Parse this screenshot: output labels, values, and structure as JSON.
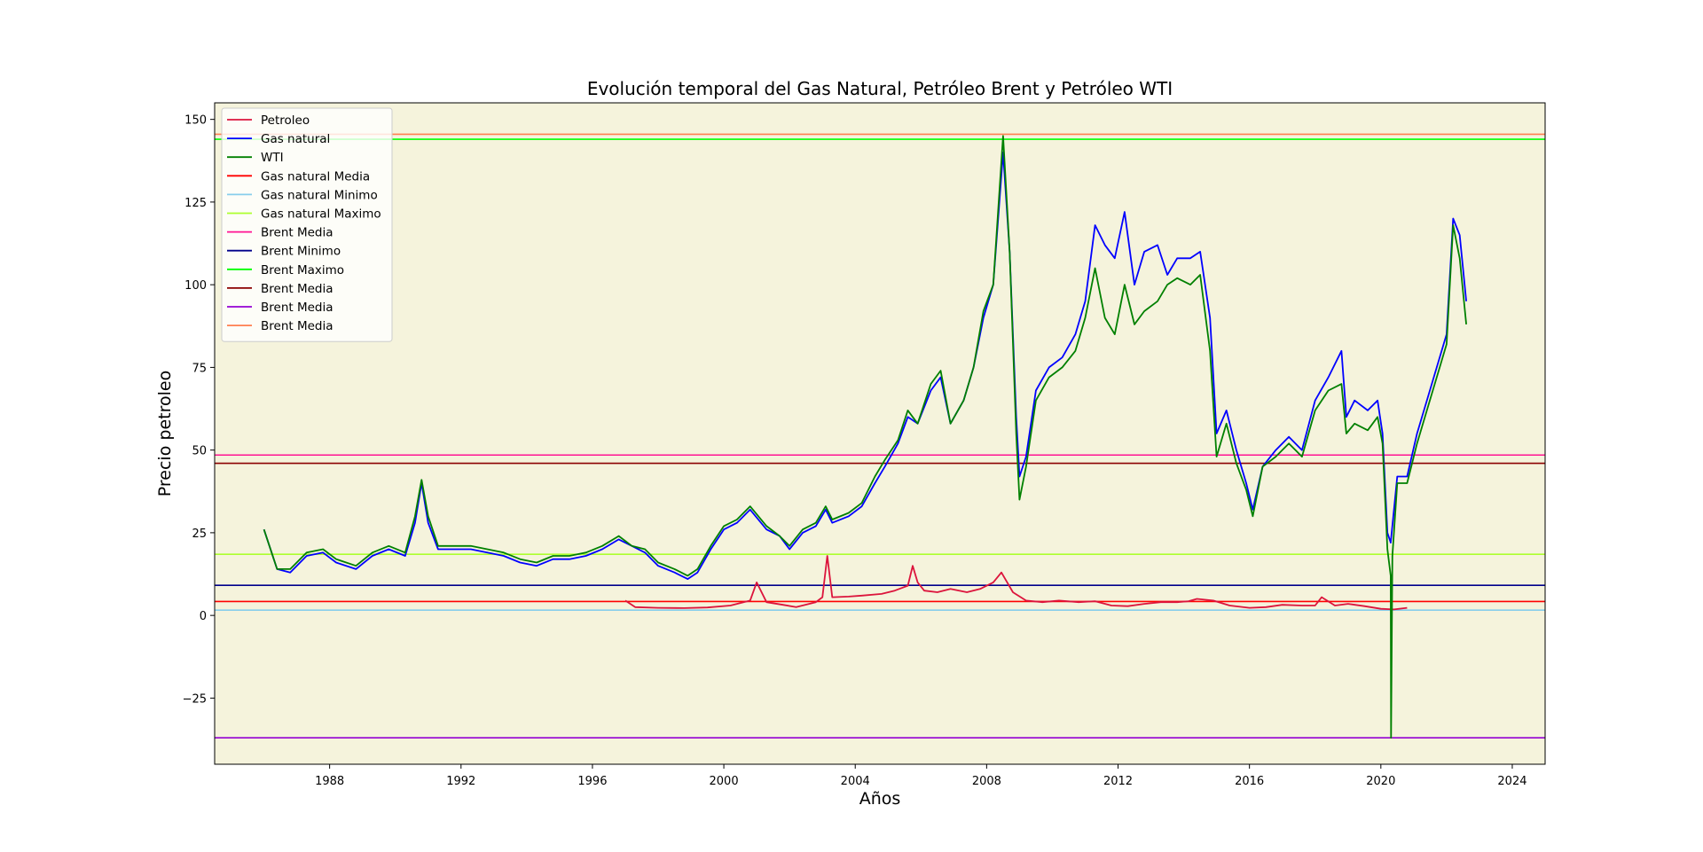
{
  "chart_data": {
    "type": "line",
    "title": "Evolución temporal del Gas Natural, Petróleo Brent y Petróleo WTI",
    "xlabel": "Años",
    "ylabel": "Precio petroleo",
    "xlim": [
      1984.5,
      2025.0
    ],
    "ylim": [
      -45,
      155
    ],
    "x_ticks": [
      1988,
      1992,
      1996,
      2000,
      2004,
      2008,
      2012,
      2016,
      2020,
      2024
    ],
    "y_ticks": [
      -25,
      0,
      25,
      50,
      75,
      100,
      125,
      150
    ],
    "grid": false,
    "plot_background": "#f5f3dc",
    "legend_position": "upper-left",
    "series": [
      {
        "name": "Petroleo",
        "color": "#dc143c",
        "x": [
          1997.0,
          1997.3,
          1998.0,
          1998.8,
          1999.5,
          2000.2,
          2000.8,
          2001.0,
          2001.3,
          2001.8,
          2002.2,
          2002.8,
          2003.0,
          2003.15,
          2003.3,
          2003.8,
          2004.2,
          2004.8,
          2005.2,
          2005.6,
          2005.75,
          2005.9,
          2006.1,
          2006.5,
          2006.9,
          2007.4,
          2007.8,
          2008.2,
          2008.45,
          2008.8,
          2009.2,
          2009.7,
          2010.2,
          2010.8,
          2011.3,
          2011.8,
          2012.3,
          2012.8,
          2013.3,
          2013.8,
          2014.15,
          2014.4,
          2014.9,
          2015.4,
          2016.0,
          2016.5,
          2017.0,
          2017.6,
          2018.0,
          2018.2,
          2018.6,
          2019.0,
          2019.5,
          2020.0,
          2020.4,
          2020.8
        ],
        "values": [
          4.5,
          2.5,
          2.3,
          2.2,
          2.4,
          3.0,
          4.5,
          10.0,
          4.0,
          3.2,
          2.5,
          4.0,
          5.5,
          18.0,
          5.5,
          5.7,
          6.0,
          6.5,
          7.5,
          9.0,
          15.0,
          10.0,
          7.5,
          7.0,
          8.0,
          7.0,
          8.0,
          10.0,
          13.0,
          7.0,
          4.5,
          4.0,
          4.5,
          4.0,
          4.3,
          3.0,
          2.8,
          3.5,
          4.0,
          4.0,
          4.3,
          5.0,
          4.5,
          3.0,
          2.3,
          2.5,
          3.2,
          3.0,
          3.0,
          5.5,
          3.0,
          3.5,
          2.8,
          2.0,
          1.8,
          2.3
        ]
      },
      {
        "name": "Gas natural",
        "color": "#0000ff",
        "x": [
          1986.0,
          1986.4,
          1986.8,
          1987.3,
          1987.8,
          1988.2,
          1988.8,
          1989.3,
          1989.8,
          1990.3,
          1990.6,
          1990.8,
          1991.0,
          1991.3,
          1991.8,
          1992.3,
          1992.8,
          1993.3,
          1993.8,
          1994.3,
          1994.8,
          1995.3,
          1995.8,
          1996.3,
          1996.8,
          1997.2,
          1997.6,
          1998.0,
          1998.5,
          1998.9,
          1999.2,
          1999.6,
          2000.0,
          2000.4,
          2000.8,
          2001.3,
          2001.7,
          2002.0,
          2002.4,
          2002.8,
          2003.1,
          2003.3,
          2003.8,
          2004.2,
          2004.6,
          2004.9,
          2005.3,
          2005.6,
          2005.9,
          2006.3,
          2006.6,
          2006.9,
          2007.3,
          2007.6,
          2007.9,
          2008.2,
          2008.5,
          2008.7,
          2008.9,
          2009.0,
          2009.2,
          2009.5,
          2009.9,
          2010.3,
          2010.7,
          2011.0,
          2011.3,
          2011.6,
          2011.9,
          2012.2,
          2012.5,
          2012.8,
          2013.2,
          2013.5,
          2013.8,
          2014.2,
          2014.5,
          2014.8,
          2015.0,
          2015.3,
          2015.6,
          2015.9,
          2016.1,
          2016.4,
          2016.8,
          2017.2,
          2017.6,
          2018.0,
          2018.4,
          2018.8,
          2018.95,
          2019.2,
          2019.6,
          2019.9,
          2020.05,
          2020.2,
          2020.3,
          2020.5,
          2020.8,
          2021.1,
          2021.4,
          2021.7,
          2022.0,
          2022.2,
          2022.4,
          2022.6
        ],
        "values": [
          26.0,
          14.0,
          13.0,
          18.0,
          19.0,
          16.0,
          14.0,
          18.0,
          20.0,
          18.0,
          28.0,
          40.0,
          28.0,
          20.0,
          20.0,
          20.0,
          19.0,
          18.0,
          16.0,
          15.0,
          17.0,
          17.0,
          18.0,
          20.0,
          23.0,
          21.0,
          19.0,
          15.0,
          13.0,
          11.0,
          13.0,
          20.0,
          26.0,
          28.0,
          32.0,
          26.0,
          24.0,
          20.0,
          25.0,
          27.0,
          32.0,
          28.0,
          30.0,
          33.0,
          40.0,
          45.0,
          52.0,
          60.0,
          58.0,
          68.0,
          72.0,
          58.0,
          65.0,
          75.0,
          90.0,
          100.0,
          140.0,
          110.0,
          60.0,
          42.0,
          48.0,
          68.0,
          75.0,
          78.0,
          85.0,
          95.0,
          118.0,
          112.0,
          108.0,
          122.0,
          100.0,
          110.0,
          112.0,
          103.0,
          108.0,
          108.0,
          110.0,
          90.0,
          55.0,
          62.0,
          50.0,
          40.0,
          32.0,
          45.0,
          50.0,
          54.0,
          50.0,
          65.0,
          72.0,
          80.0,
          60.0,
          65.0,
          62.0,
          65.0,
          55.0,
          25.0,
          22.0,
          42.0,
          42.0,
          55.0,
          65.0,
          75.0,
          85.0,
          120.0,
          115.0,
          95.0
        ]
      },
      {
        "name": "WTI",
        "color": "#008000",
        "x": [
          1986.0,
          1986.4,
          1986.8,
          1987.3,
          1987.8,
          1988.2,
          1988.8,
          1989.3,
          1989.8,
          1990.3,
          1990.6,
          1990.8,
          1991.0,
          1991.3,
          1991.8,
          1992.3,
          1992.8,
          1993.3,
          1993.8,
          1994.3,
          1994.8,
          1995.3,
          1995.8,
          1996.3,
          1996.8,
          1997.2,
          1997.6,
          1998.0,
          1998.5,
          1998.9,
          1999.2,
          1999.6,
          2000.0,
          2000.4,
          2000.8,
          2001.3,
          2001.7,
          2002.0,
          2002.4,
          2002.8,
          2003.1,
          2003.3,
          2003.8,
          2004.2,
          2004.6,
          2004.9,
          2005.3,
          2005.6,
          2005.9,
          2006.3,
          2006.6,
          2006.9,
          2007.3,
          2007.6,
          2007.9,
          2008.2,
          2008.5,
          2008.7,
          2008.9,
          2009.0,
          2009.2,
          2009.5,
          2009.9,
          2010.3,
          2010.7,
          2011.0,
          2011.3,
          2011.6,
          2011.9,
          2012.2,
          2012.5,
          2012.8,
          2013.2,
          2013.5,
          2013.8,
          2014.2,
          2014.5,
          2014.8,
          2015.0,
          2015.3,
          2015.6,
          2015.9,
          2016.1,
          2016.4,
          2016.8,
          2017.2,
          2017.6,
          2018.0,
          2018.4,
          2018.8,
          2018.95,
          2019.2,
          2019.6,
          2019.9,
          2020.05,
          2020.2,
          2020.3,
          2020.31,
          2020.35,
          2020.5,
          2020.8,
          2021.1,
          2021.4,
          2021.7,
          2022.0,
          2022.2,
          2022.4,
          2022.6
        ],
        "values": [
          26.0,
          14.0,
          14.0,
          19.0,
          20.0,
          17.0,
          15.0,
          19.0,
          21.0,
          19.0,
          30.0,
          41.0,
          30.0,
          21.0,
          21.0,
          21.0,
          20.0,
          19.0,
          17.0,
          16.0,
          18.0,
          18.0,
          19.0,
          21.0,
          24.0,
          21.0,
          20.0,
          16.0,
          14.0,
          12.0,
          14.0,
          21.0,
          27.0,
          29.0,
          33.0,
          27.0,
          24.0,
          21.0,
          26.0,
          28.0,
          33.0,
          29.0,
          31.0,
          34.0,
          42.0,
          47.0,
          53.0,
          62.0,
          58.0,
          70.0,
          74.0,
          58.0,
          65.0,
          75.0,
          92.0,
          100.0,
          145.0,
          110.0,
          55.0,
          35.0,
          45.0,
          65.0,
          72.0,
          75.0,
          80.0,
          90.0,
          105.0,
          90.0,
          85.0,
          100.0,
          88.0,
          92.0,
          95.0,
          100.0,
          102.0,
          100.0,
          103.0,
          80.0,
          48.0,
          58.0,
          46.0,
          38.0,
          30.0,
          45.0,
          48.0,
          52.0,
          48.0,
          62.0,
          68.0,
          70.0,
          55.0,
          58.0,
          56.0,
          60.0,
          52.0,
          20.0,
          12.0,
          -37.0,
          18.0,
          40.0,
          40.0,
          52.0,
          62.0,
          72.0,
          82.0,
          118.0,
          108.0,
          88.0
        ]
      }
    ],
    "hlines": [
      {
        "name": "Gas natural Media",
        "value": 4.2,
        "color": "#ff0000"
      },
      {
        "name": "Gas natural Minimo",
        "value": 1.6,
        "color": "#87ceeb"
      },
      {
        "name": "Gas natural Maximo",
        "value": 18.5,
        "color": "#adff2f"
      },
      {
        "name": "Brent Media",
        "value": 48.5,
        "color": "#ff1493"
      },
      {
        "name": "Brent Minimo",
        "value": 9.1,
        "color": "#00008b"
      },
      {
        "name": "Brent Maximo",
        "value": 144.0,
        "color": "#00ff00"
      },
      {
        "name": "Brent Media",
        "value": 46.0,
        "color": "#8b0000"
      },
      {
        "name": "Brent Media",
        "value": -37.0,
        "color": "#9400d3"
      },
      {
        "name": "Brent Media",
        "value": 145.5,
        "color": "#ff7f50"
      }
    ]
  }
}
